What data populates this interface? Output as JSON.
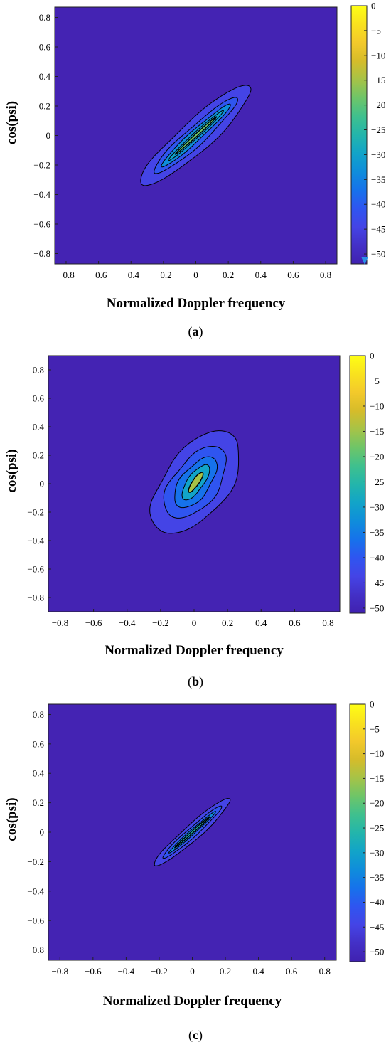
{
  "colors": {
    "background": "#4423b3",
    "contour_line": "#000000"
  },
  "colorbar_colors": [
    "#4021b0",
    "#4330c6",
    "#4444e6",
    "#2f55f0",
    "#1672eb",
    "#0f8ddb",
    "#12a4c8",
    "#23b5ab",
    "#3fc08e",
    "#6ec568",
    "#a6c347",
    "#d6bc2a",
    "#f3c92b",
    "#f9e21e",
    "#fefe15"
  ],
  "chart_data": [
    {
      "type": "heatmap",
      "panel": "a",
      "caption_letter": "a",
      "xlabel": "Normalized Doppler frequency",
      "ylabel": "cos(psi)",
      "xlim": [
        -0.87,
        0.87
      ],
      "ylim": [
        -0.87,
        0.87
      ],
      "x_ticks": [
        "-0.8",
        "-0.6",
        "-0.4",
        "-0.2",
        "0",
        "0.2",
        "0.4",
        "0.6",
        "0.8"
      ],
      "y_ticks": [
        "0.8",
        "0.6",
        "0.4",
        "0.2",
        "0",
        "-0.2",
        "-0.4",
        "-0.6",
        "-0.8"
      ],
      "colorbar_ticks": [
        "0",
        "-5",
        "-10",
        "-15",
        "-20",
        "-25",
        "-30",
        "-35",
        "-40",
        "-45",
        "-50"
      ],
      "colorbar_range": [
        -52,
        0
      ],
      "background_level": -52,
      "ridge": {
        "angle_deg": 45,
        "description": "diagonal ridge along cos(psi) = Normalized Doppler frequency"
      },
      "contours": [
        {
          "level": -45,
          "half_length": 0.47,
          "half_width": 0.1
        },
        {
          "level": -40,
          "half_length": 0.36,
          "half_width": 0.06
        },
        {
          "level": -35,
          "half_length": 0.3,
          "half_width": 0.035
        },
        {
          "level": -30,
          "half_length": 0.24,
          "half_width": 0.018
        },
        {
          "level": -20,
          "half_length": 0.18,
          "half_width": 0.008
        }
      ],
      "grid": false
    },
    {
      "type": "heatmap",
      "panel": "b",
      "caption_letter": "b",
      "xlabel": "Normalized Doppler frequency",
      "ylabel": "cos(psi)",
      "xlim": [
        -0.87,
        0.87
      ],
      "ylim": [
        -0.9,
        0.9
      ],
      "x_ticks": [
        "-0.8",
        "-0.6",
        "-0.4",
        "-0.2",
        "0",
        "0.2",
        "0.4",
        "0.6",
        "0.8"
      ],
      "y_ticks": [
        "0.8",
        "0.6",
        "0.4",
        "0.2",
        "0",
        "-0.2",
        "-0.4",
        "-0.6",
        "-0.8"
      ],
      "colorbar_ticks": [
        "0",
        "-5",
        "-10",
        "-15",
        "-20",
        "-25",
        "-30",
        "-35",
        "-40",
        "-45",
        "-50"
      ],
      "colorbar_range": [
        -51,
        0
      ],
      "background_level": -51,
      "ridge": {
        "angle_deg": 60,
        "description": "compact blob centred near (0, 0) with peak near (0.05, 0.08)"
      },
      "contours": [
        {
          "level": -45,
          "half_length": 0.4,
          "half_width": 0.2
        },
        {
          "level": -40,
          "half_length": 0.28,
          "half_width": 0.14
        },
        {
          "level": -35,
          "half_length": 0.2,
          "half_width": 0.09
        },
        {
          "level": -30,
          "half_length": 0.14,
          "half_width": 0.05
        },
        {
          "level": -15,
          "half_length": 0.08,
          "half_width": 0.02
        }
      ],
      "grid": false
    },
    {
      "type": "heatmap",
      "panel": "c",
      "caption_letter": "c",
      "xlabel": "Normalized Doppler frequency",
      "ylabel": "cos(psi)",
      "xlim": [
        -0.87,
        0.87
      ],
      "ylim": [
        -0.87,
        0.87
      ],
      "x_ticks": [
        "-0.8",
        "-0.6",
        "-0.4",
        "-0.2",
        "0",
        "0.2",
        "0.4",
        "0.6",
        "0.8"
      ],
      "y_ticks": [
        "0.8",
        "0.6",
        "0.4",
        "0.2",
        "0",
        "-0.2",
        "-0.4",
        "-0.6",
        "-0.8"
      ],
      "colorbar_ticks": [
        "0",
        "-5",
        "-10",
        "-15",
        "-20",
        "-25",
        "-30",
        "-35",
        "-40",
        "-45",
        "-50"
      ],
      "colorbar_range": [
        -52,
        0
      ],
      "background_level": -52,
      "ridge": {
        "angle_deg": 45,
        "description": "narrow diagonal ridge along cos(psi) = Normalized Doppler frequency"
      },
      "contours": [
        {
          "level": -45,
          "half_length": 0.32,
          "half_width": 0.05
        },
        {
          "level": -40,
          "half_length": 0.25,
          "half_width": 0.03
        },
        {
          "level": -35,
          "half_length": 0.2,
          "half_width": 0.015
        },
        {
          "level": -25,
          "half_length": 0.15,
          "half_width": 0.006
        }
      ],
      "grid": false
    }
  ]
}
